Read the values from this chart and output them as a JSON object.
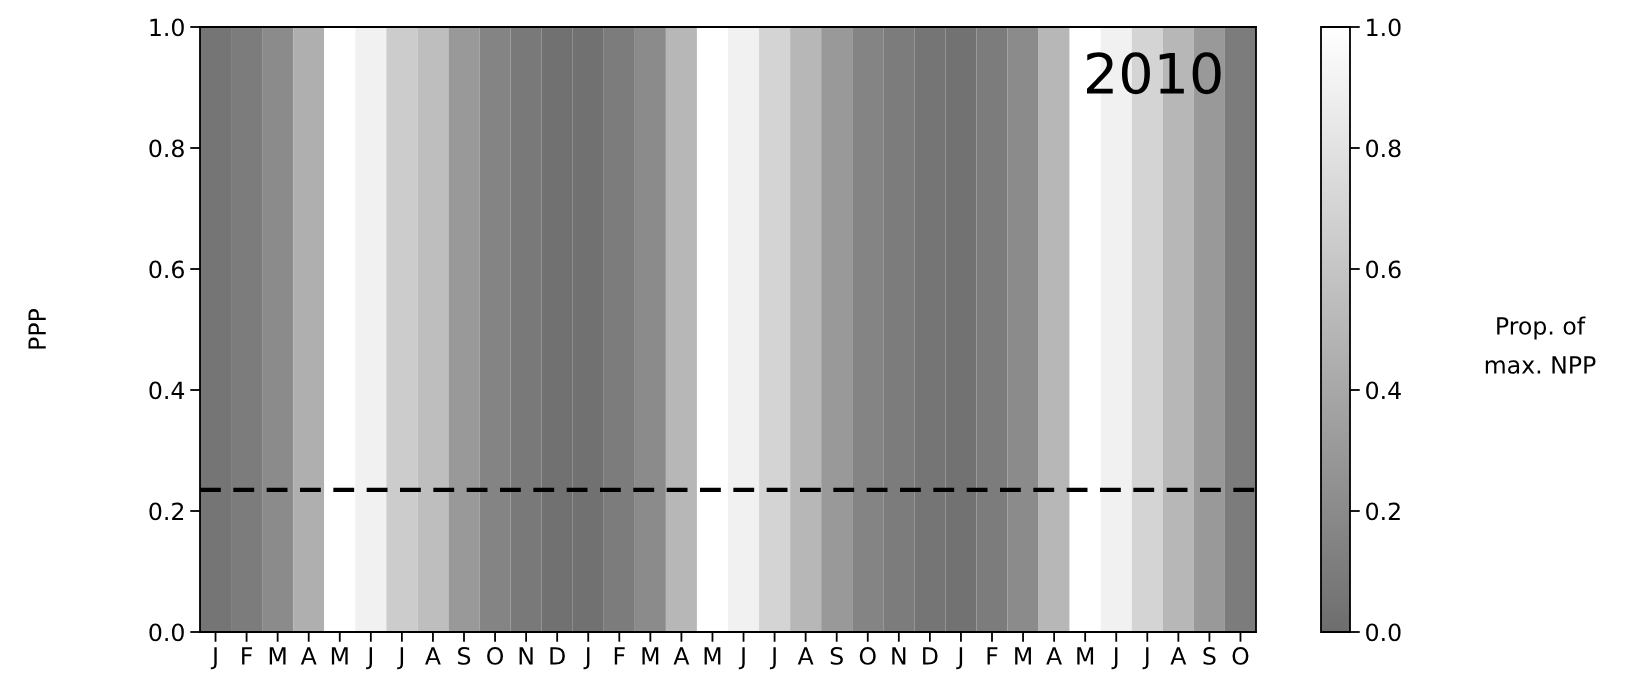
{
  "chart_data": {
    "type": "heatmap",
    "ylabel": "PPP",
    "clabel": "Prop. of\nmax. NPP",
    "annotations": [
      "2010"
    ],
    "categories": [
      "J",
      "F",
      "M",
      "A",
      "M",
      "J",
      "J",
      "A",
      "S",
      "O",
      "N",
      "D",
      "J",
      "F",
      "M",
      "A",
      "M",
      "J",
      "J",
      "A",
      "S",
      "O",
      "N",
      "D",
      "J",
      "F",
      "M",
      "A",
      "M",
      "J",
      "J",
      "A",
      "S",
      "O"
    ],
    "cells": [
      [
        0.05,
        0.1,
        0.2,
        0.45,
        1.0,
        0.9,
        0.65,
        0.55,
        0.3,
        0.15,
        0.08,
        0.02,
        0.02,
        0.1,
        0.2,
        0.5,
        1.0,
        0.9,
        0.7,
        0.5,
        0.3,
        0.15,
        0.1,
        0.05,
        0.03,
        0.1,
        0.2,
        0.5,
        1.0,
        0.9,
        0.7,
        0.5,
        0.3,
        0.1
      ]
    ],
    "ylim": [
      0,
      1
    ],
    "yticks": [
      {
        "value": 0,
        "label": "0.0"
      },
      {
        "value": 0.2,
        "label": "0.2"
      },
      {
        "value": 0.4,
        "label": "0.4"
      },
      {
        "value": 0.6,
        "label": "0.6"
      },
      {
        "value": 0.8,
        "label": "0.8"
      },
      {
        "value": 1,
        "label": "1.0"
      }
    ],
    "clim": [
      0,
      1
    ],
    "cticks": [
      {
        "value": 0,
        "label": "0.0"
      },
      {
        "value": 0.2,
        "label": "0.2"
      },
      {
        "value": 0.4,
        "label": "0.4"
      },
      {
        "value": 0.6,
        "label": "0.6"
      },
      {
        "value": 0.8,
        "label": "0.8"
      },
      {
        "value": 1,
        "label": "1.0"
      }
    ],
    "ref_lines": [
      {
        "axis": "y",
        "value": 0.235,
        "color": "#000000",
        "line_style": "dashed"
      }
    ]
  }
}
